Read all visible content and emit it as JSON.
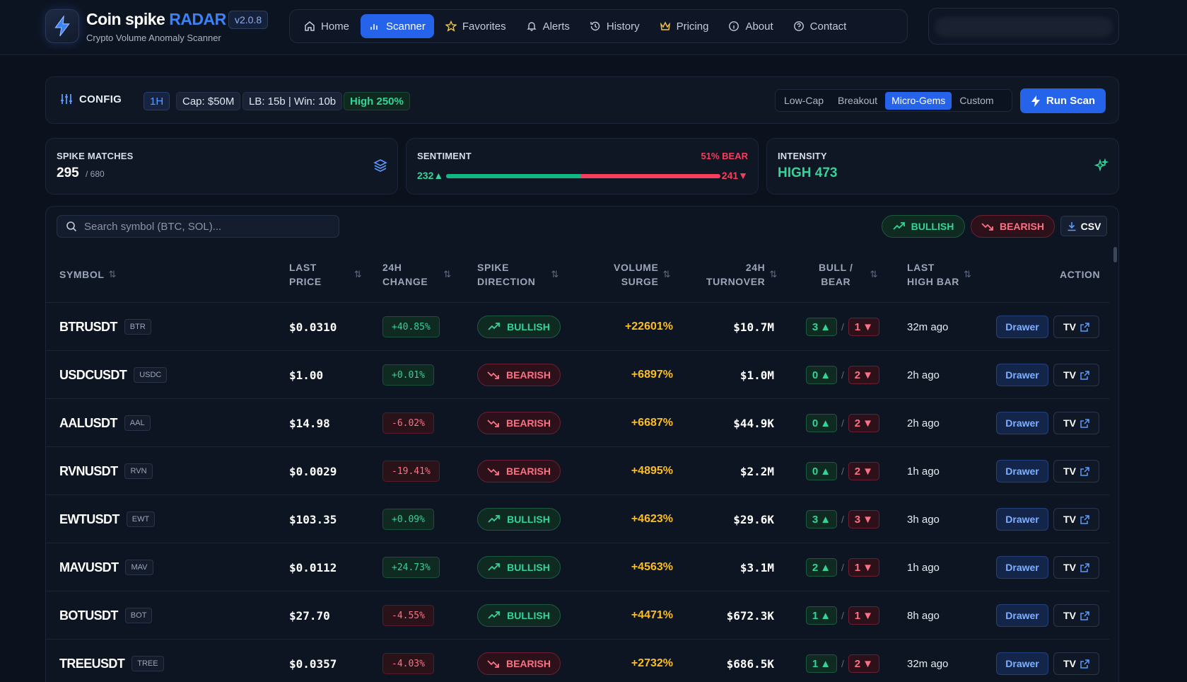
{
  "brand": {
    "name": "Coin spike",
    "name_accent": "RADAR",
    "version": "v2.0.8",
    "subtitle": "Crypto Volume Anomaly Scanner"
  },
  "nav": {
    "items": [
      {
        "label": "Home",
        "icon": "home-icon",
        "active": false
      },
      {
        "label": "Scanner",
        "icon": "bar-chart-icon",
        "active": true
      },
      {
        "label": "Favorites",
        "icon": "star-icon",
        "active": false
      },
      {
        "label": "Alerts",
        "icon": "bell-icon",
        "active": false
      },
      {
        "label": "History",
        "icon": "history-icon",
        "active": false
      },
      {
        "label": "Pricing",
        "icon": "crown-icon",
        "active": false
      },
      {
        "label": "About",
        "icon": "info-icon",
        "active": false
      },
      {
        "label": "Contact",
        "icon": "help-circle-icon",
        "active": false
      }
    ]
  },
  "config": {
    "label": "CONFIG",
    "timeframe": "1H",
    "cap": "Cap: $50M",
    "lookback": "LB: 15b | Win: 10b",
    "high": "High 250%",
    "presets": [
      "Low-Cap",
      "Breakout",
      "Micro-Gems",
      "Custom"
    ],
    "active_preset": "Micro-Gems",
    "run_label": "Run Scan"
  },
  "stats": {
    "spike": {
      "label": "SPIKE MATCHES",
      "value": "295",
      "total": "/ 680"
    },
    "sentiment": {
      "label": "SENTIMENT",
      "bear_pct": "51% BEAR",
      "bull_count": "232▲",
      "bear_count": "241▼",
      "bull_value": 232,
      "bear_value": 241
    },
    "intensity": {
      "label": "INTENSITY",
      "value": "HIGH 473"
    }
  },
  "table": {
    "search_placeholder": "Search symbol (BTC, SOL)...",
    "filter_bull": "BULLISH",
    "filter_bear": "BEARISH",
    "csv_label": "CSV",
    "headers": {
      "symbol": "SYMBOL",
      "last_price": [
        "LAST",
        "PRICE"
      ],
      "change": [
        "24H",
        "CHANGE"
      ],
      "direction": [
        "SPIKE",
        "DIRECTION"
      ],
      "surge": [
        "VOLUME",
        "SURGE"
      ],
      "turnover": [
        "24H",
        "TURNOVER"
      ],
      "bullbear": [
        "BULL /",
        "BEAR"
      ],
      "last_high": [
        "LAST",
        "HIGH BAR"
      ],
      "action": "ACTION"
    },
    "action_drawer": "Drawer",
    "action_tv": "TV",
    "rows": [
      {
        "symbol": "BTRUSDT",
        "tag": "BTR",
        "price": "$0.0310",
        "change": "+40.85%",
        "change_dir": "pos",
        "direction": "BULLISH",
        "surge": "+22601%",
        "turnover": "$10.7M",
        "bull": "3",
        "bear": "1",
        "last_high": "32m ago"
      },
      {
        "symbol": "USDCUSDT",
        "tag": "USDC",
        "price": "$1.00",
        "change": "+0.01%",
        "change_dir": "pos",
        "direction": "BEARISH",
        "surge": "+6897%",
        "turnover": "$1.0M",
        "bull": "0",
        "bear": "2",
        "last_high": "2h ago"
      },
      {
        "symbol": "AALUSDT",
        "tag": "AAL",
        "price": "$14.98",
        "change": "-6.02%",
        "change_dir": "neg",
        "direction": "BEARISH",
        "surge": "+6687%",
        "turnover": "$44.9K",
        "bull": "0",
        "bear": "2",
        "last_high": "2h ago"
      },
      {
        "symbol": "RVNUSDT",
        "tag": "RVN",
        "price": "$0.0029",
        "change": "-19.41%",
        "change_dir": "neg",
        "direction": "BEARISH",
        "surge": "+4895%",
        "turnover": "$2.2M",
        "bull": "0",
        "bear": "2",
        "last_high": "1h ago"
      },
      {
        "symbol": "EWTUSDT",
        "tag": "EWT",
        "price": "$103.35",
        "change": "+0.09%",
        "change_dir": "pos",
        "direction": "BULLISH",
        "surge": "+4623%",
        "turnover": "$29.6K",
        "bull": "3",
        "bear": "3",
        "last_high": "3h ago"
      },
      {
        "symbol": "MAVUSDT",
        "tag": "MAV",
        "price": "$0.0112",
        "change": "+24.73%",
        "change_dir": "pos",
        "direction": "BULLISH",
        "surge": "+4563%",
        "turnover": "$3.1M",
        "bull": "2",
        "bear": "1",
        "last_high": "1h ago"
      },
      {
        "symbol": "BOTUSDT",
        "tag": "BOT",
        "price": "$27.70",
        "change": "-4.55%",
        "change_dir": "neg",
        "direction": "BULLISH",
        "surge": "+4471%",
        "turnover": "$672.3K",
        "bull": "1",
        "bear": "1",
        "last_high": "8h ago"
      },
      {
        "symbol": "TREEUSDT",
        "tag": "TREE",
        "price": "$0.0357",
        "change": "-4.03%",
        "change_dir": "neg",
        "direction": "BEARISH",
        "surge": "+2732%",
        "turnover": "$686.5K",
        "bull": "1",
        "bear": "2",
        "last_high": "32m ago"
      }
    ]
  },
  "colors": {
    "accent": "#2563eb",
    "bull": "#34d399",
    "bear": "#fb7185",
    "surge": "#fbbf24",
    "background": "#0b111d"
  }
}
